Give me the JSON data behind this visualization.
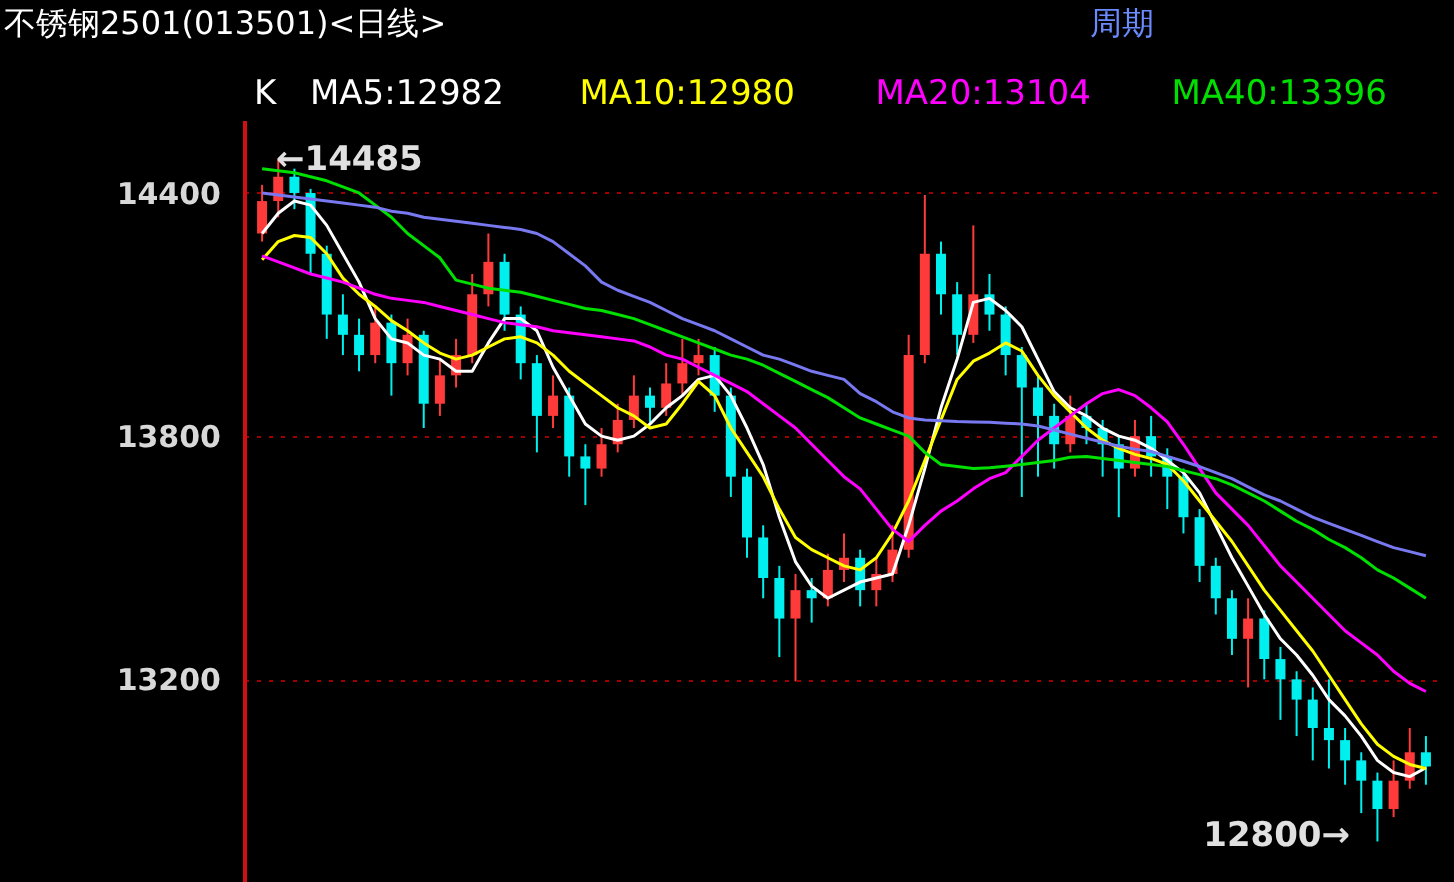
{
  "chart_data": {
    "type": "candlestick",
    "title": "不锈钢2501(013501)<日线>",
    "categories": [
      null,
      null,
      null,
      null,
      null,
      null,
      null,
      null,
      null,
      null,
      null,
      null,
      null,
      null,
      null,
      null,
      null,
      null,
      null,
      null,
      null,
      null,
      null,
      null,
      null,
      null,
      null,
      null,
      null,
      null,
      null,
      null,
      null,
      null,
      null,
      null,
      null,
      null,
      null,
      null,
      null,
      null,
      null,
      null,
      null,
      null,
      null,
      null,
      null,
      null,
      null,
      null,
      null,
      null,
      null,
      null,
      null,
      null,
      null,
      null,
      null,
      null,
      null,
      null,
      null,
      null,
      null,
      null,
      null,
      null,
      null,
      null,
      null
    ],
    "ylim": [
      12700,
      14580
    ],
    "yticks": [
      13200,
      13800,
      14400
    ],
    "grid": "y",
    "legend": "top left",
    "tick_labels": "y",
    "annotations": [
      "周期",
      "←14485",
      "12800→",
      "K"
    ],
    "series": [
      {
        "colors": [
          "#ff3a3a",
          "#ff3a3a",
          "#00f0f0",
          "#00f0f0",
          "#00f0f0",
          "#00f0f0",
          "#00f0f0",
          "#ff3a3a",
          "#00f0f0",
          "#ff3a3a",
          "#00f0f0",
          "#ff3a3a",
          "#ff3a3a",
          "#ff3a3a",
          "#ff3a3a",
          "#00f0f0",
          "#00f0f0",
          "#00f0f0",
          "#ff3a3a",
          "#00f0f0",
          "#00f0f0",
          "#ff3a3a",
          "#ff3a3a",
          "#ff3a3a",
          "#00f0f0",
          "#ff3a3a",
          "#ff3a3a",
          "#ff3a3a",
          "#00f0f0",
          "#00f0f0",
          "#00f0f0",
          "#00f0f0",
          "#00f0f0",
          "#ff3a3a",
          "#00f0f0",
          "#ff3a3a",
          "#ff3a3a",
          "#00f0f0",
          "#ff3a3a",
          "#ff3a3a",
          "#ff3a3a",
          "#ff3a3a",
          "#00f0f0",
          "#00f0f0",
          "#ff3a3a",
          "#00f0f0",
          "#00f0f0",
          "#00f0f0",
          "#00f0f0",
          "#00f0f0",
          "#ff3a3a",
          "#00f0f0",
          "#00f0f0",
          "#00f0f0",
          "#ff3a3a",
          "#00f0f0",
          "#00f0f0",
          "#00f0f0",
          "#00f0f0",
          "#00f0f0",
          "#00f0f0",
          "#ff3a3a",
          "#00f0f0",
          "#00f0f0",
          "#00f0f0",
          "#00f0f0",
          "#00f0f0",
          "#00f0f0",
          "#00f0f0",
          "#00f0f0",
          "#ff3a3a",
          "#ff3a3a",
          "#00f0f0"
        ],
        "ohlc": [
          [
            14300,
            14420,
            14280,
            14380
          ],
          [
            14380,
            14485,
            14340,
            14440
          ],
          [
            14440,
            14460,
            14360,
            14400
          ],
          [
            14400,
            14410,
            14200,
            14250
          ],
          [
            14250,
            14270,
            14040,
            14100
          ],
          [
            14100,
            14150,
            14000,
            14050
          ],
          [
            14050,
            14090,
            13960,
            14000
          ],
          [
            14000,
            14120,
            13980,
            14080
          ],
          [
            14080,
            14100,
            13900,
            13980
          ],
          [
            13980,
            14090,
            13950,
            14050
          ],
          [
            14050,
            14060,
            13820,
            13880
          ],
          [
            13880,
            13990,
            13850,
            13950
          ],
          [
            13950,
            14040,
            13920,
            14000
          ],
          [
            14000,
            14200,
            13980,
            14150
          ],
          [
            14150,
            14300,
            14120,
            14230
          ],
          [
            14230,
            14250,
            14060,
            14100
          ],
          [
            14100,
            14120,
            13940,
            13980
          ],
          [
            13980,
            14000,
            13760,
            13850
          ],
          [
            13850,
            13950,
            13820,
            13900
          ],
          [
            13900,
            13920,
            13700,
            13750
          ],
          [
            13750,
            13780,
            13630,
            13720
          ],
          [
            13720,
            13820,
            13700,
            13780
          ],
          [
            13780,
            13880,
            13760,
            13840
          ],
          [
            13840,
            13950,
            13820,
            13900
          ],
          [
            13900,
            13920,
            13830,
            13870
          ],
          [
            13870,
            13980,
            13850,
            13930
          ],
          [
            13930,
            14040,
            13900,
            13980
          ],
          [
            13980,
            14040,
            13950,
            14000
          ],
          [
            14000,
            14020,
            13860,
            13900
          ],
          [
            13900,
            13920,
            13650,
            13700
          ],
          [
            13700,
            13720,
            13500,
            13550
          ],
          [
            13550,
            13580,
            13400,
            13450
          ],
          [
            13450,
            13480,
            13255,
            13350
          ],
          [
            13350,
            13460,
            13195,
            13420
          ],
          [
            13420,
            13450,
            13340,
            13400
          ],
          [
            13400,
            13510,
            13380,
            13470
          ],
          [
            13470,
            13560,
            13440,
            13500
          ],
          [
            13500,
            13520,
            13380,
            13420
          ],
          [
            13420,
            13500,
            13380,
            13460
          ],
          [
            13460,
            13580,
            13440,
            13520
          ],
          [
            13520,
            14050,
            13500,
            14000
          ],
          [
            14000,
            14395,
            13980,
            14250
          ],
          [
            14250,
            14280,
            14100,
            14150
          ],
          [
            14150,
            14180,
            14000,
            14050
          ],
          [
            14050,
            14320,
            14030,
            14150
          ],
          [
            14150,
            14200,
            14060,
            14100
          ],
          [
            14100,
            14120,
            13950,
            14000
          ],
          [
            14000,
            14020,
            13650,
            13920
          ],
          [
            13920,
            13950,
            13700,
            13850
          ],
          [
            13850,
            13880,
            13720,
            13780
          ],
          [
            13780,
            13900,
            13760,
            13850
          ],
          [
            13850,
            13880,
            13780,
            13820
          ],
          [
            13820,
            13840,
            13700,
            13780
          ],
          [
            13780,
            13800,
            13600,
            13720
          ],
          [
            13720,
            13840,
            13700,
            13800
          ],
          [
            13800,
            13850,
            13700,
            13750
          ],
          [
            13750,
            13770,
            13620,
            13700
          ],
          [
            13700,
            13720,
            13560,
            13600
          ],
          [
            13600,
            13620,
            13440,
            13480
          ],
          [
            13480,
            13500,
            13360,
            13400
          ],
          [
            13400,
            13420,
            13260,
            13300
          ],
          [
            13300,
            13400,
            13180,
            13350
          ],
          [
            13350,
            13370,
            13200,
            13250
          ],
          [
            13250,
            13280,
            13100,
            13200
          ],
          [
            13200,
            13220,
            13060,
            13150
          ],
          [
            13150,
            13180,
            13000,
            13080
          ],
          [
            13080,
            13200,
            12980,
            13050
          ],
          [
            13050,
            13080,
            12940,
            13000
          ],
          [
            13000,
            13020,
            12870,
            12950
          ],
          [
            12950,
            12970,
            12800,
            12880
          ],
          [
            12880,
            13000,
            12860,
            12950
          ],
          [
            12950,
            13080,
            12930,
            13020
          ],
          [
            13020,
            13060,
            12940,
            12985
          ]
        ]
      },
      {
        "type": "line",
        "name": "MA5:12982",
        "color": "#ffffff",
        "values": [
          14300,
          14350,
          14380,
          14370,
          14320,
          14250,
          14180,
          14090,
          14040,
          14030,
          14000,
          13990,
          13960,
          13960,
          14030,
          14090,
          14090,
          14060,
          13970,
          13900,
          13830,
          13800,
          13790,
          13800,
          13830,
          13870,
          13900,
          13940,
          13950,
          13900,
          13820,
          13730,
          13600,
          13490,
          13430,
          13400,
          13420,
          13440,
          13450,
          13460,
          13580,
          13720,
          13870,
          13990,
          14130,
          14140,
          14110,
          14070,
          13990,
          13910,
          13870,
          13850,
          13820,
          13800,
          13790,
          13770,
          13740,
          13710,
          13660,
          13580,
          13500,
          13430,
          13360,
          13300,
          13260,
          13210,
          13150,
          13110,
          13060,
          13000,
          12970,
          12960,
          12982
        ]
      },
      {
        "type": "line",
        "name": "MA10:12980",
        "color": "#ffff00",
        "values": [
          14235,
          14280,
          14295,
          14290,
          14250,
          14190,
          14150,
          14120,
          14085,
          14060,
          14030,
          14005,
          13990,
          14000,
          14020,
          14040,
          14045,
          14030,
          14000,
          13960,
          13930,
          13900,
          13870,
          13850,
          13820,
          13830,
          13880,
          13935,
          13900,
          13820,
          13760,
          13700,
          13620,
          13550,
          13520,
          13500,
          13480,
          13470,
          13500,
          13560,
          13640,
          13740,
          13840,
          13940,
          13985,
          14005,
          14030,
          14010,
          13950,
          13900,
          13860,
          13820,
          13790,
          13770,
          13755,
          13745,
          13730,
          13690,
          13640,
          13590,
          13540,
          13480,
          13420,
          13370,
          13320,
          13270,
          13210,
          13150,
          13090,
          13040,
          13010,
          12990,
          12980
        ]
      },
      {
        "type": "line",
        "name": "MA20:13104",
        "color": "#ff00ff",
        "values": [
          14245,
          14230,
          14215,
          14200,
          14190,
          14180,
          14165,
          14150,
          14140,
          14135,
          14130,
          14120,
          14110,
          14100,
          14090,
          14080,
          14075,
          14070,
          14060,
          14055,
          14050,
          14045,
          14040,
          14035,
          14020,
          14000,
          13990,
          13970,
          13950,
          13930,
          13910,
          13880,
          13850,
          13820,
          13780,
          13740,
          13700,
          13670,
          13620,
          13570,
          13540,
          13580,
          13615,
          13640,
          13670,
          13695,
          13710,
          13750,
          13790,
          13820,
          13850,
          13880,
          13905,
          13915,
          13900,
          13870,
          13835,
          13780,
          13720,
          13660,
          13620,
          13580,
          13530,
          13480,
          13440,
          13400,
          13360,
          13320,
          13290,
          13260,
          13220,
          13190,
          13170
        ]
      },
      {
        "type": "line",
        "name": "MA40:13396",
        "color": "#00e000",
        "values": [
          14460,
          14455,
          14450,
          14440,
          14430,
          14415,
          14400,
          14370,
          14340,
          14300,
          14270,
          14240,
          14185,
          14175,
          14165,
          14160,
          14155,
          14145,
          14135,
          14125,
          14115,
          14110,
          14100,
          14090,
          14075,
          14060,
          14045,
          14030,
          14015,
          14000,
          13990,
          13975,
          13955,
          13935,
          13915,
          13895,
          13870,
          13845,
          13830,
          13815,
          13800,
          13760,
          13730,
          13725,
          13720,
          13722,
          13726,
          13730,
          13735,
          13740,
          13748,
          13750,
          13745,
          13740,
          13735,
          13730,
          13725,
          13715,
          13705,
          13695,
          13680,
          13660,
          13640,
          13615,
          13590,
          13570,
          13545,
          13525,
          13500,
          13470,
          13450,
          13425,
          13400
        ]
      },
      {
        "type": "line",
        "color": "#7878f0",
        "values": [
          14400,
          14395,
          14390,
          14385,
          14380,
          14375,
          14370,
          14365,
          14355,
          14350,
          14340,
          14335,
          14330,
          14325,
          14320,
          14315,
          14310,
          14300,
          14280,
          14250,
          14220,
          14180,
          14160,
          14145,
          14130,
          14110,
          14090,
          14075,
          14060,
          14040,
          14020,
          14000,
          13990,
          13975,
          13960,
          13950,
          13940,
          13905,
          13885,
          13860,
          13845,
          13840,
          13838,
          13836,
          13835,
          13834,
          13832,
          13830,
          13825,
          13815,
          13805,
          13795,
          13785,
          13775,
          13768,
          13762,
          13750,
          13738,
          13725,
          13710,
          13695,
          13675,
          13655,
          13640,
          13620,
          13600,
          13585,
          13570,
          13555,
          13540,
          13525,
          13515,
          13505
        ]
      }
    ]
  }
}
